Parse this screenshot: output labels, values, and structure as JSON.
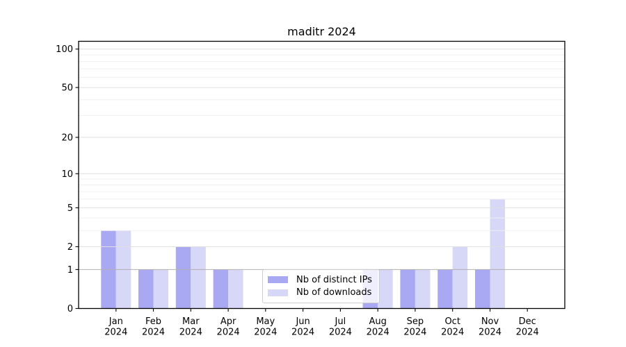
{
  "chart_data": {
    "type": "bar",
    "title": "maditr 2024",
    "categories": [
      "Jan",
      "Feb",
      "Mar",
      "Apr",
      "May",
      "Jun",
      "Jul",
      "Aug",
      "Sep",
      "Oct",
      "Nov",
      "Dec"
    ],
    "year_label": "2024",
    "series": [
      {
        "name": "Nb of distinct IPs",
        "color": "#a9a9f3",
        "values": [
          3,
          1,
          2,
          1,
          0,
          0,
          0,
          1,
          1,
          1,
          1,
          0
        ]
      },
      {
        "name": "Nb of downloads",
        "color": "#d7d7f7",
        "values": [
          3,
          1,
          2,
          1,
          0,
          0,
          0,
          1,
          1,
          2,
          6,
          0
        ]
      }
    ],
    "y_scale": "log1p",
    "y_axis": {
      "major_ticks": [
        0,
        1,
        2,
        5,
        10,
        20,
        50,
        100
      ],
      "minor_ticks": [
        3,
        4,
        6,
        7,
        8,
        9,
        30,
        40,
        60,
        70,
        80,
        90
      ],
      "lim": [
        0,
        115
      ]
    },
    "grid": "major+minor horizontal, drawn over bars",
    "legend": {
      "position": "lower center"
    },
    "colors": {
      "background": "#ffffff",
      "spine": "#000000",
      "grid_major": "#e0e0e0",
      "grid_minor": "#efefef",
      "grid_unit_line": "#b0b0b0",
      "tick": "#000000",
      "text": "#000000",
      "legend_border": "#cccccc"
    }
  }
}
